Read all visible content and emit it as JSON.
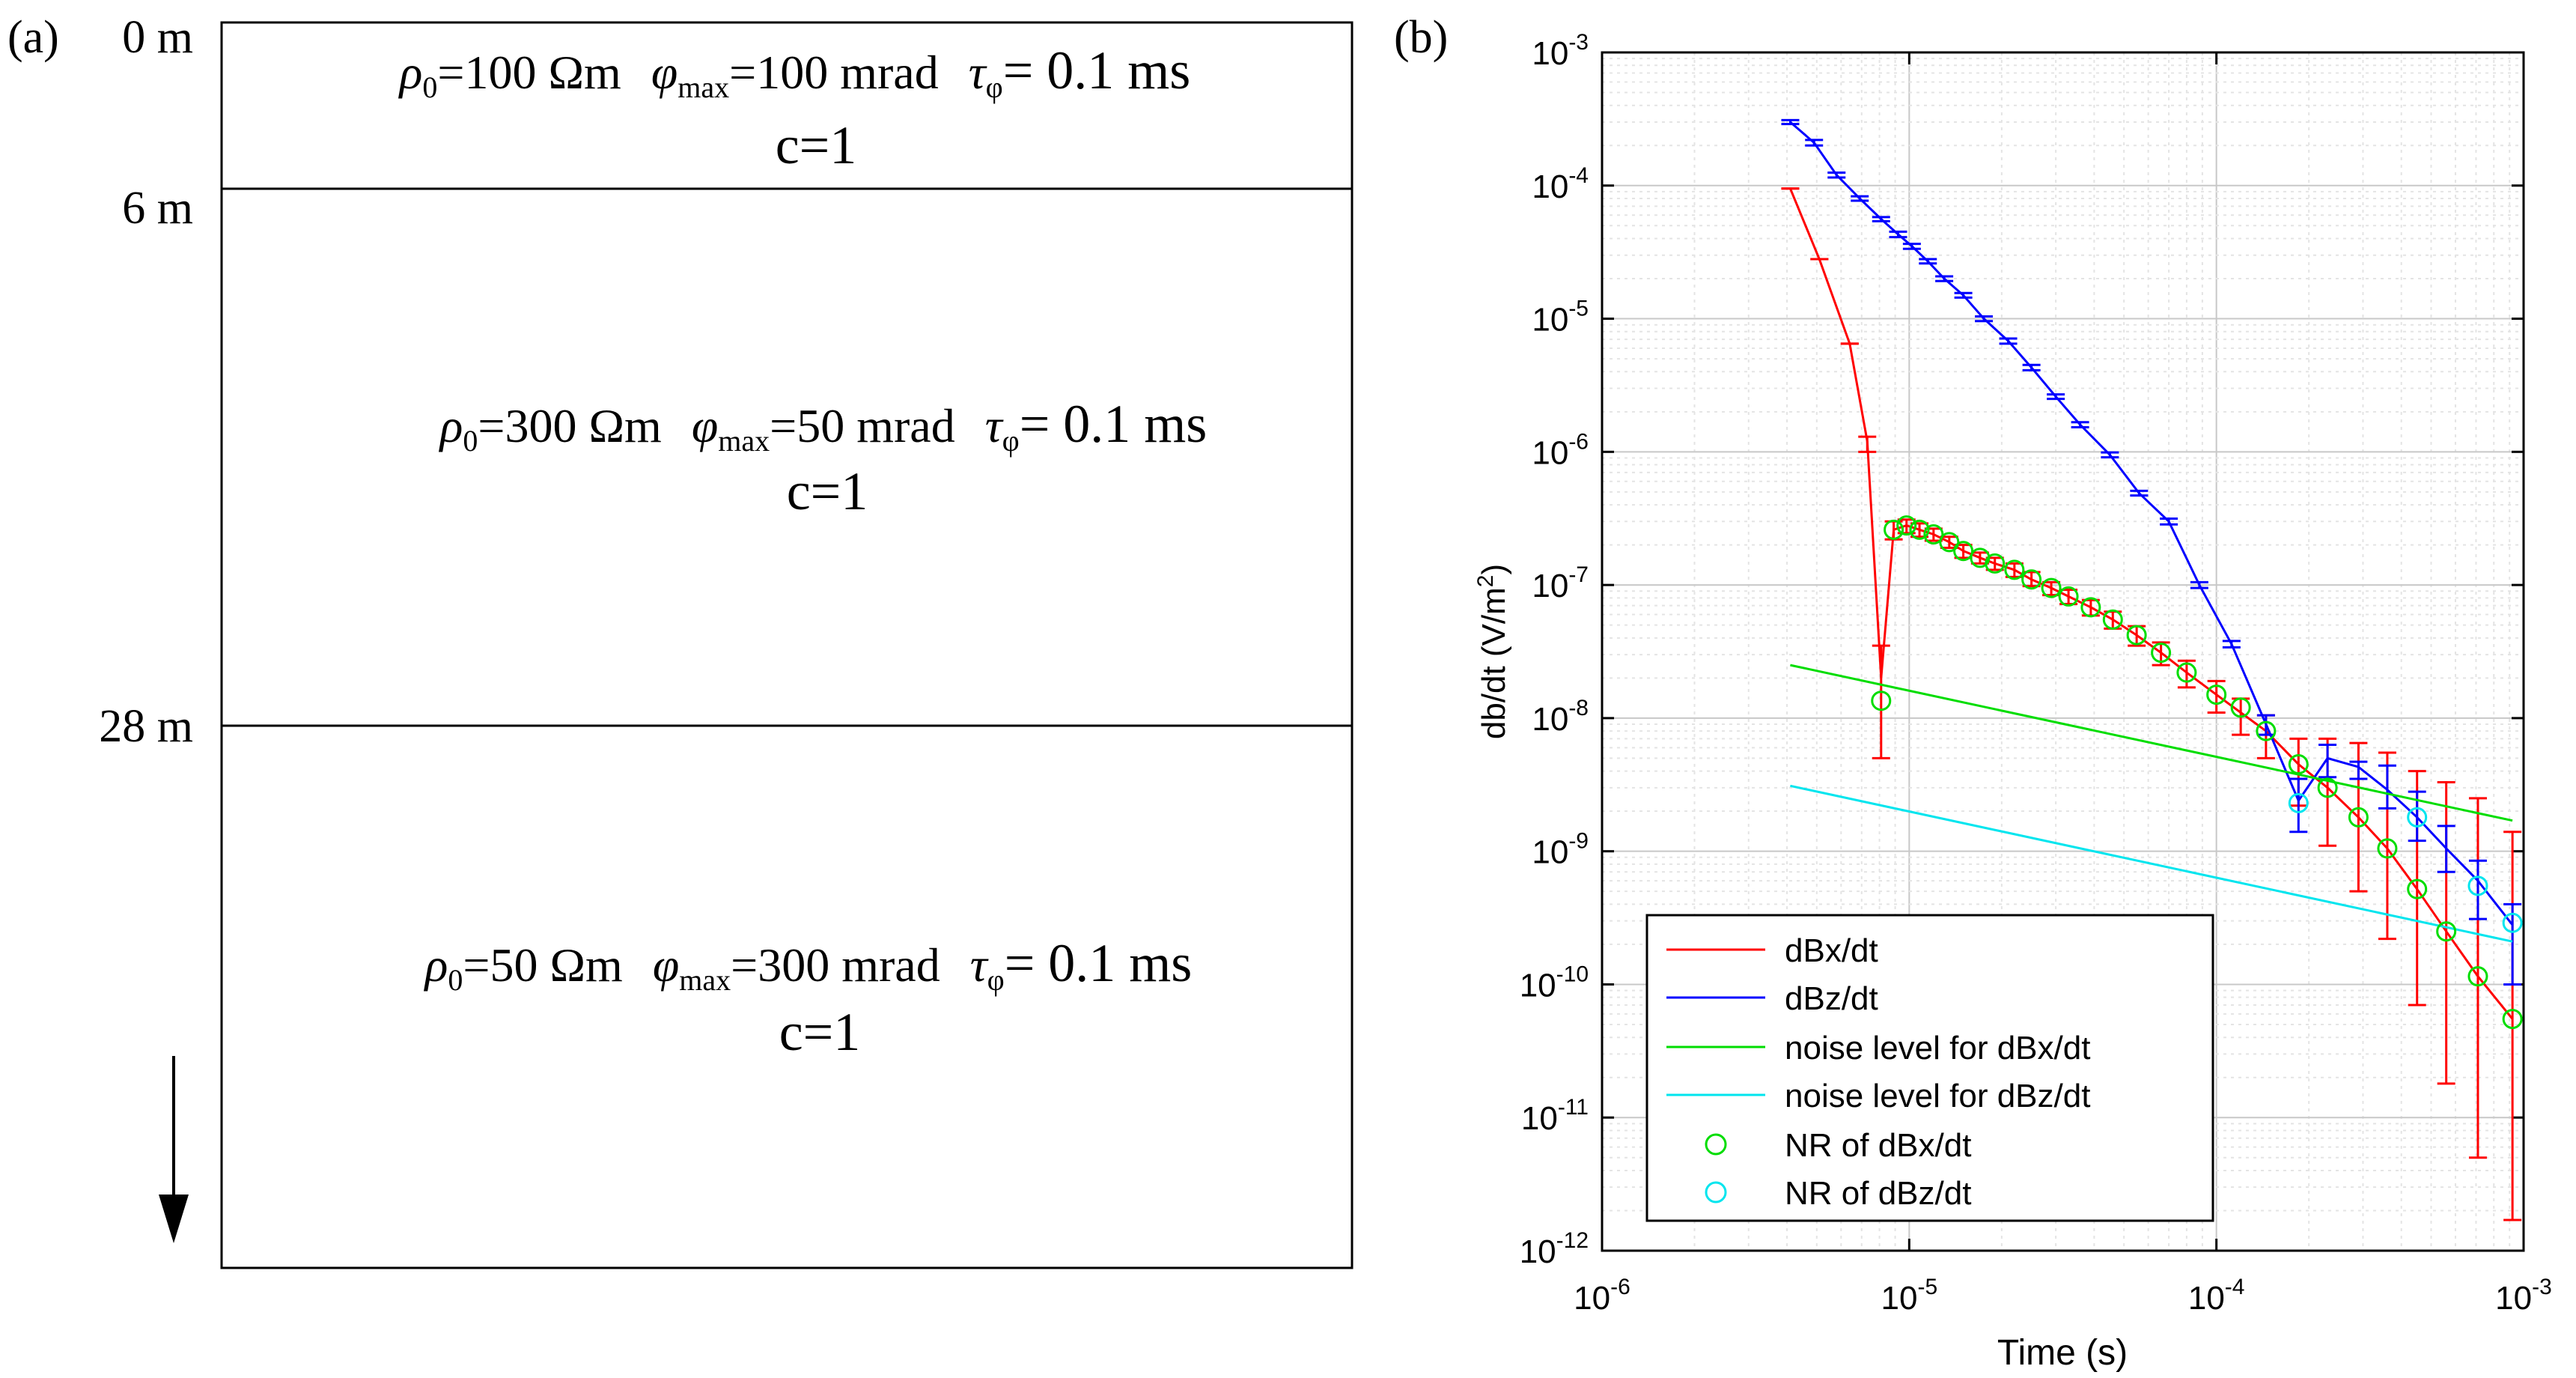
{
  "panel_a": {
    "label": "(a)",
    "depth_labels": [
      "0 m",
      "6 m",
      "28 m"
    ],
    "layers": [
      {
        "rho_sym": "ρ",
        "rho_sub": "0",
        "rho_text": "=100 Ωm",
        "phi_sym": "φ",
        "phi_sub": "max",
        "phi_text": "=100 mrad",
        "tau_sym": "τ",
        "tau_sub": "φ",
        "tau_text": "= 0.1 ms",
        "c": "c=1"
      },
      {
        "rho_sym": "ρ",
        "rho_sub": "0",
        "rho_text": "=300 Ωm",
        "phi_sym": "φ",
        "phi_sub": "max",
        "phi_text": "=50 mrad",
        "tau_sym": "τ",
        "tau_sub": "φ",
        "tau_text": "= 0.1 ms",
        "c": "c=1"
      },
      {
        "rho_sym": "ρ",
        "rho_sub": "0",
        "rho_text": "=50 Ωm",
        "phi_sym": "φ",
        "phi_sub": "max",
        "phi_text": "=300 mrad",
        "tau_sym": "τ",
        "tau_sub": "φ",
        "tau_text": "= 0.1 ms",
        "c": "c=1"
      }
    ]
  },
  "panel_b_label": "(b)",
  "chart_data": {
    "type": "line",
    "xscale": "log",
    "yscale": "log",
    "xlabel": "Time (s)",
    "ylabel": "db/dt (V/m²)",
    "ylabel_main": "db/dt (V/m",
    "ylabel_sup": "2",
    "ylabel_end": ")",
    "xlim": [
      1e-06,
      0.001
    ],
    "ylim": [
      1e-12,
      0.001
    ],
    "grid": true,
    "legend_position": "bottom-left",
    "xticks": [
      {
        "base": "10",
        "exp": "-6"
      },
      {
        "base": "10",
        "exp": "-5"
      },
      {
        "base": "10",
        "exp": "-4"
      },
      {
        "base": "10",
        "exp": "-3"
      }
    ],
    "yticks": [
      {
        "base": "10",
        "exp": "-12"
      },
      {
        "base": "10",
        "exp": "-11"
      },
      {
        "base": "10",
        "exp": "-10"
      },
      {
        "base": "10",
        "exp": "-9"
      },
      {
        "base": "10",
        "exp": "-8"
      },
      {
        "base": "10",
        "exp": "-7"
      },
      {
        "base": "10",
        "exp": "-6"
      },
      {
        "base": "10",
        "exp": "-5"
      },
      {
        "base": "10",
        "exp": "-4"
      },
      {
        "base": "10",
        "exp": "-3"
      }
    ],
    "series": [
      {
        "name": "dBx/dt",
        "color": "#ff0000",
        "x": [
          4.1e-06,
          5.1e-06,
          6.4e-06,
          7.3e-06,
          8.1e-06,
          8.9e-06,
          9.8e-06,
          1.08e-05,
          1.2e-05,
          1.35e-05,
          1.5e-05,
          1.7e-05,
          1.9e-05,
          2.2e-05,
          2.5e-05,
          2.9e-05,
          3.3e-05,
          3.9e-05,
          4.6e-05,
          5.5e-05,
          6.6e-05,
          8e-05,
          0.0001,
          0.00012,
          0.000145,
          0.000185,
          0.00023,
          0.00029,
          0.00036,
          0.00045,
          0.00056,
          0.00071,
          0.00092
        ],
        "y": [
          9.5e-05,
          2.8e-05,
          6.5e-06,
          1.2e-06,
          2e-08,
          2.6e-07,
          2.8e-07,
          2.6e-07,
          2.4e-07,
          2.1e-07,
          1.8e-07,
          1.6e-07,
          1.45e-07,
          1.3e-07,
          1.1e-07,
          9.5e-08,
          8.2e-08,
          6.8e-08,
          5.5e-08,
          4.2e-08,
          3.1e-08,
          2.2e-08,
          1.5e-08,
          1.1e-08,
          8e-09,
          4.5e-09,
          3e-09,
          1.8e-09,
          1.05e-09,
          5.2e-10,
          2.5e-10,
          1.15e-10,
          5.5e-11
        ],
        "err_low": [
          9.5e-05,
          2.8e-05,
          6.5e-06,
          1e-06,
          5e-09,
          2.2e-07,
          2.45e-07,
          2.3e-07,
          2.15e-07,
          1.9e-07,
          1.6e-07,
          1.45e-07,
          1.3e-07,
          1.15e-07,
          9.8e-08,
          8.4e-08,
          7.2e-08,
          5.9e-08,
          4.7e-08,
          3.5e-08,
          2.5e-08,
          1.7e-08,
          1.1e-08,
          7.5e-09,
          5e-09,
          2.2e-09,
          1.1e-09,
          5e-10,
          2.2e-10,
          7e-11,
          1.8e-11,
          5e-12,
          1.7e-12
        ],
        "err_high": [
          9.5e-05,
          2.8e-05,
          6.5e-06,
          1.3e-06,
          3.5e-08,
          3e-07,
          3.1e-07,
          2.9e-07,
          2.65e-07,
          2.3e-07,
          2e-07,
          1.75e-07,
          1.6e-07,
          1.45e-07,
          1.25e-07,
          1.05e-07,
          9.2e-08,
          7.7e-08,
          6.3e-08,
          4.9e-08,
          3.7e-08,
          2.7e-08,
          1.9e-08,
          1.4e-08,
          1.05e-08,
          7e-09,
          7e-09,
          6.5e-09,
          5.5e-09,
          4e-09,
          3.3e-09,
          2.5e-09,
          1.4e-09
        ]
      },
      {
        "name": "dBz/dt",
        "color": "#0000ff",
        "x": [
          4.1e-06,
          4.9e-06,
          5.8e-06,
          6.9e-06,
          8.1e-06,
          9.2e-06,
          1.02e-05,
          1.15e-05,
          1.3e-05,
          1.5e-05,
          1.75e-05,
          2.1e-05,
          2.5e-05,
          3e-05,
          3.6e-05,
          4.5e-05,
          5.6e-05,
          7e-05,
          8.8e-05,
          0.000112,
          0.000145,
          0.000185,
          0.00023,
          0.00029,
          0.00036,
          0.00045,
          0.00056,
          0.00071,
          0.00092
        ],
        "y": [
          0.0003,
          0.00021,
          0.00012,
          8e-05,
          5.6e-05,
          4.3e-05,
          3.5e-05,
          2.7e-05,
          2e-05,
          1.5e-05,
          1e-05,
          6.8e-06,
          4.3e-06,
          2.6e-06,
          1.6e-06,
          9.5e-07,
          4.9e-07,
          3e-07,
          1e-07,
          3.6e-08,
          9e-09,
          2.4e-09,
          5e-09,
          4.3e-09,
          2.9e-09,
          1.8e-09,
          1.05e-09,
          6e-10,
          2.8e-10
        ],
        "err_low": [
          0.00029,
          0.0002,
          0.000115,
          7.7e-05,
          5.4e-05,
          4.1e-05,
          3.35e-05,
          2.6e-05,
          1.92e-05,
          1.44e-05,
          9.6e-06,
          6.5e-06,
          4.1e-06,
          2.5e-06,
          1.53e-06,
          9.1e-07,
          4.7e-07,
          2.85e-07,
          9.5e-08,
          3.4e-08,
          7.5e-09,
          1.4e-09,
          3.6e-09,
          3.5e-09,
          2.1e-09,
          1.2e-09,
          7e-10,
          3.1e-10,
          1e-10
        ],
        "err_high": [
          0.00031,
          0.00022,
          0.000125,
          8.3e-05,
          5.8e-05,
          4.5e-05,
          3.65e-05,
          2.8e-05,
          2.08e-05,
          1.56e-05,
          1.04e-05,
          7.1e-06,
          4.5e-06,
          2.7e-06,
          1.67e-06,
          9.9e-07,
          5.1e-07,
          3.15e-07,
          1.05e-07,
          3.8e-08,
          1.05e-08,
          3.5e-09,
          6.3e-09,
          4.7e-09,
          4.4e-09,
          2.8e-09,
          1.55e-09,
          8.5e-10,
          4e-10
        ]
      },
      {
        "name": "noise level for dBx/dt",
        "color": "#00dd00",
        "x": [
          4.1e-06,
          0.00092
        ],
        "y": [
          2.5e-08,
          1.7e-09
        ]
      },
      {
        "name": "noise level for dBz/dt",
        "color": "#00e5ee",
        "x": [
          4.1e-06,
          0.00092
        ],
        "y": [
          3.1e-09,
          2.1e-10
        ]
      },
      {
        "name": "NR of dBx/dt",
        "color": "#00dd00",
        "marker": "circle",
        "x": [
          8.1e-06,
          8.9e-06,
          9.8e-06,
          1.08e-05,
          1.2e-05,
          1.35e-05,
          1.5e-05,
          1.7e-05,
          1.9e-05,
          2.2e-05,
          2.5e-05,
          2.9e-05,
          3.3e-05,
          3.9e-05,
          4.6e-05,
          5.5e-05,
          6.6e-05,
          8e-05,
          0.0001,
          0.00012,
          0.000145,
          0.000185,
          0.00023,
          0.00029,
          0.00036,
          0.00045,
          0.00056,
          0.00071,
          0.00092
        ],
        "y": [
          1.35e-08,
          2.6e-07,
          2.8e-07,
          2.6e-07,
          2.4e-07,
          2.1e-07,
          1.8e-07,
          1.6e-07,
          1.45e-07,
          1.3e-07,
          1.1e-07,
          9.5e-08,
          8.2e-08,
          6.8e-08,
          5.5e-08,
          4.2e-08,
          3.1e-08,
          2.2e-08,
          1.5e-08,
          1.2e-08,
          8e-09,
          4.5e-09,
          3e-09,
          1.8e-09,
          1.05e-09,
          5.2e-10,
          2.5e-10,
          1.15e-10,
          5.5e-11
        ]
      },
      {
        "name": "NR of dBz/dt",
        "color": "#00e5ee",
        "marker": "circle",
        "x": [
          0.000185,
          0.00045,
          0.00071,
          0.00092
        ],
        "y": [
          2.3e-09,
          1.8e-09,
          5.5e-10,
          2.9e-10
        ]
      }
    ]
  }
}
